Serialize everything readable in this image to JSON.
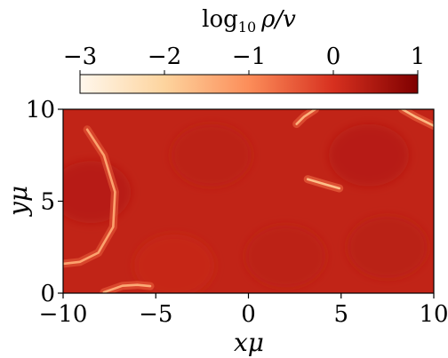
{
  "chart_data": {
    "type": "heatmap",
    "title": "",
    "xlabel": "xμ",
    "ylabel": "yμ",
    "xlim": [
      -10,
      10
    ],
    "ylim": [
      0,
      10
    ],
    "x_ticks": [
      -10,
      -5,
      0,
      5,
      10
    ],
    "y_ticks": [
      0,
      5,
      10
    ],
    "x_tick_labels": [
      "−10",
      "−5",
      "0",
      "5",
      "10"
    ],
    "y_tick_labels": [
      "0",
      "5",
      "10"
    ],
    "colorbar": {
      "label_base": "log",
      "label_sub": "10",
      "label_rest": "ρ/v",
      "range": [
        -3,
        1
      ],
      "ticks": [
        -3,
        -2,
        -1,
        0,
        1
      ],
      "tick_labels": [
        "−3",
        "−2",
        "−1",
        "0",
        "1"
      ],
      "colormap": "OrRd",
      "colors": [
        "#fff7ec",
        "#fdd49e",
        "#fc8d59",
        "#d7301f",
        "#7f0000"
      ]
    },
    "field": {
      "background_value": 0.25,
      "filaments": [
        {
          "points": [
            [
              -8.7,
              8.9
            ],
            [
              -7.8,
              7.5
            ],
            [
              -7.2,
              5.5
            ],
            [
              -7.3,
              3.6
            ],
            [
              -8.1,
              2.2
            ],
            [
              -9.1,
              1.7
            ],
            [
              -10,
              1.6
            ]
          ],
          "min_value": -1.3
        },
        {
          "points": [
            [
              -7.8,
              0.05
            ],
            [
              -6.8,
              0.4
            ],
            [
              -6.0,
              0.45
            ],
            [
              -5.3,
              0.38
            ]
          ],
          "min_value": -1.4
        },
        {
          "points": [
            [
              2.6,
              9.2
            ],
            [
              3.0,
              9.6
            ],
            [
              3.6,
              10.0
            ]
          ],
          "min_value": -1.5
        },
        {
          "points": [
            [
              3.2,
              6.2
            ],
            [
              4.2,
              5.9
            ],
            [
              4.9,
              5.7
            ]
          ],
          "min_value": -1.7
        },
        {
          "points": [
            [
              8.3,
              10.0
            ],
            [
              9.0,
              9.6
            ],
            [
              10.0,
              9.1
            ]
          ],
          "min_value": -1.6
        }
      ]
    }
  }
}
